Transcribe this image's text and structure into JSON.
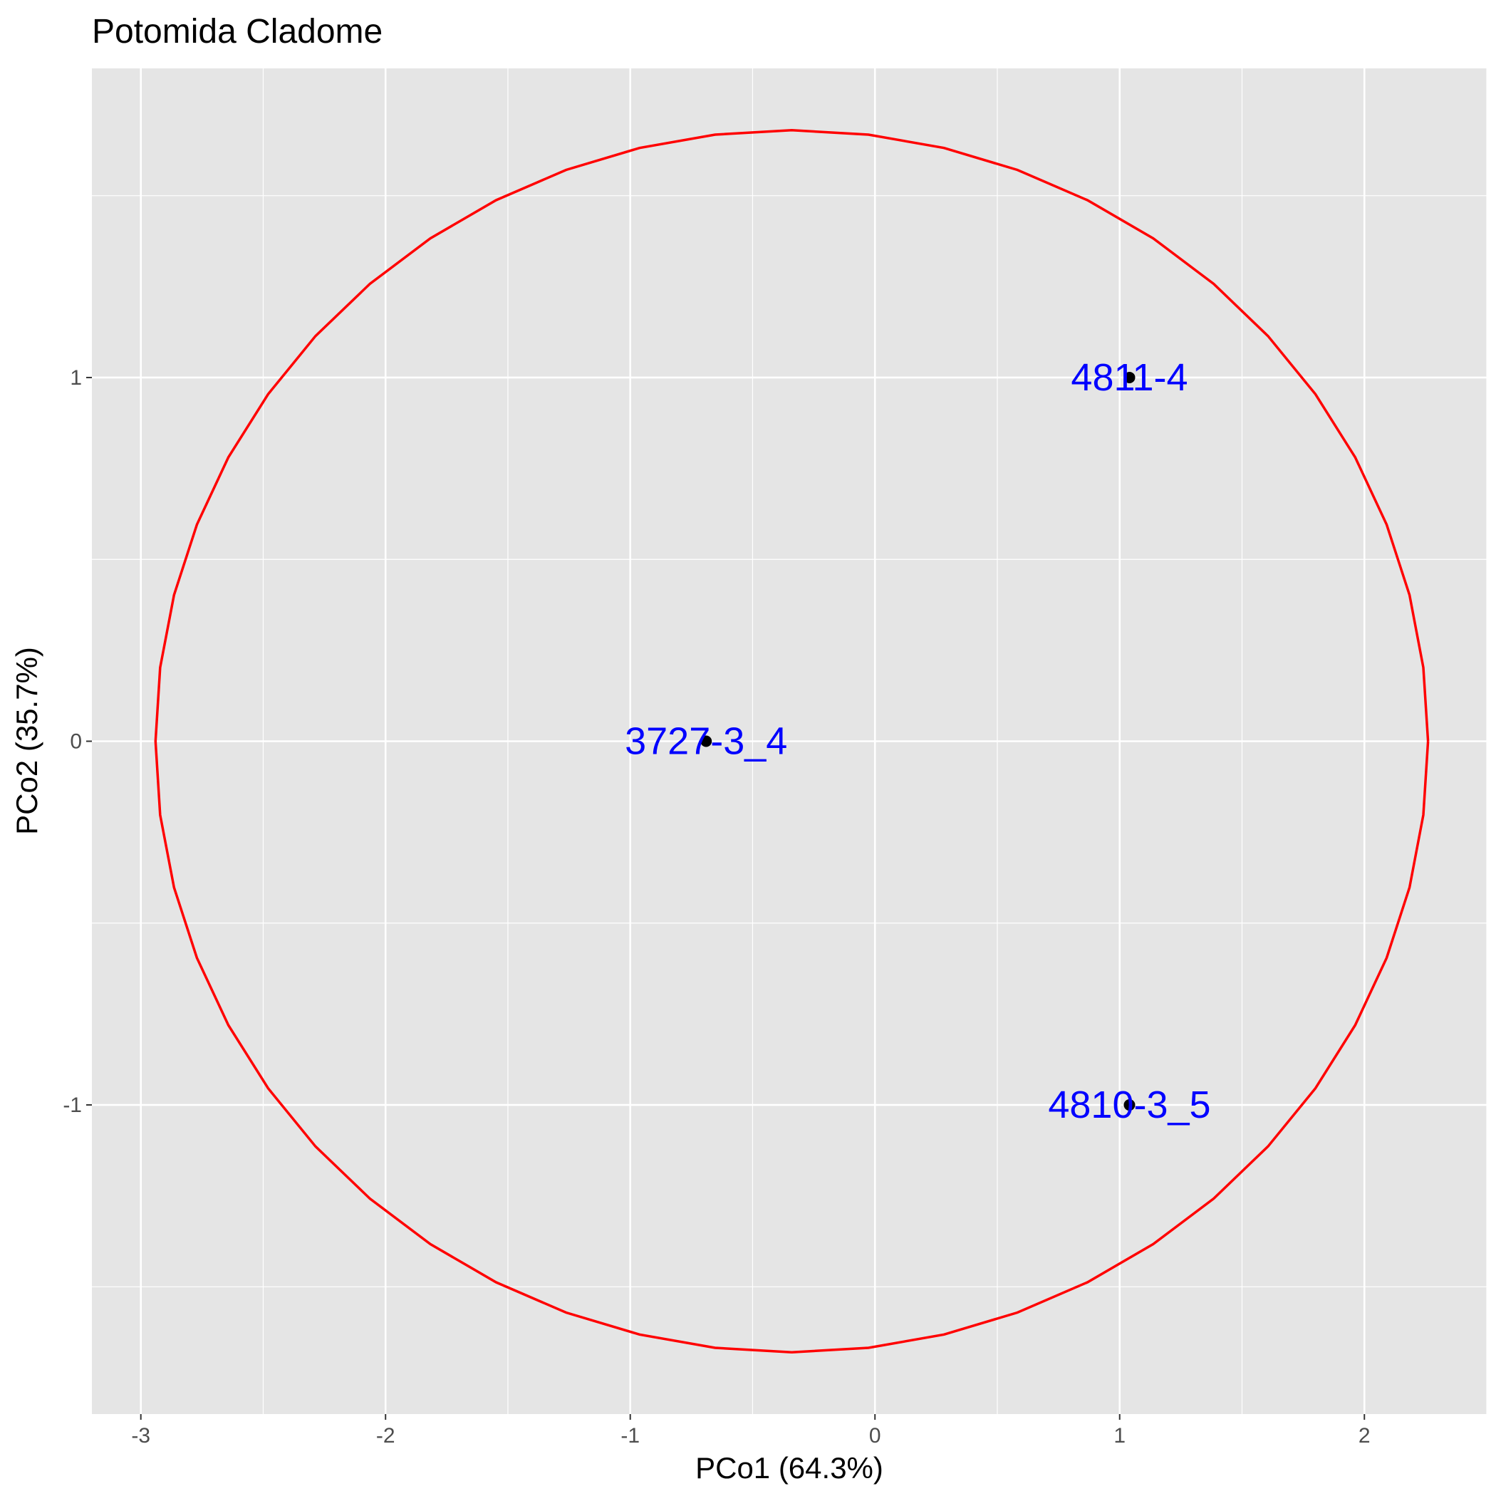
{
  "chart_data": {
    "type": "scatter",
    "title": "Potomida Cladome",
    "xlabel": "PCo1 (64.3%)",
    "ylabel": "PCo2 (35.7%)",
    "xlim": [
      -3.2,
      2.5
    ],
    "ylim": [
      -1.85,
      1.85
    ],
    "x_ticks": [
      -3,
      -2,
      -1,
      0,
      1,
      2
    ],
    "x_tick_labels": [
      "-3",
      "-2",
      "-1",
      "0",
      "1",
      "2"
    ],
    "y_ticks": [
      -1,
      0,
      1
    ],
    "y_tick_labels": [
      "-1",
      "0",
      "1"
    ],
    "grid": true,
    "panel_background": "#e5e5e5",
    "grid_color": "#ffffff",
    "point_color": "#000000",
    "label_color": "#0000ff",
    "points": [
      {
        "x": 1.04,
        "y": 1.0,
        "label": "4811-4"
      },
      {
        "x": -0.69,
        "y": 0.0,
        "label": "3727-3_4"
      },
      {
        "x": 1.04,
        "y": -1.0,
        "label": "4810-3_5"
      }
    ],
    "ellipse": {
      "color": "#ff0000",
      "center": [
        -0.34,
        0.0
      ],
      "x_radius": 2.6,
      "y_radius": 1.68
    }
  }
}
